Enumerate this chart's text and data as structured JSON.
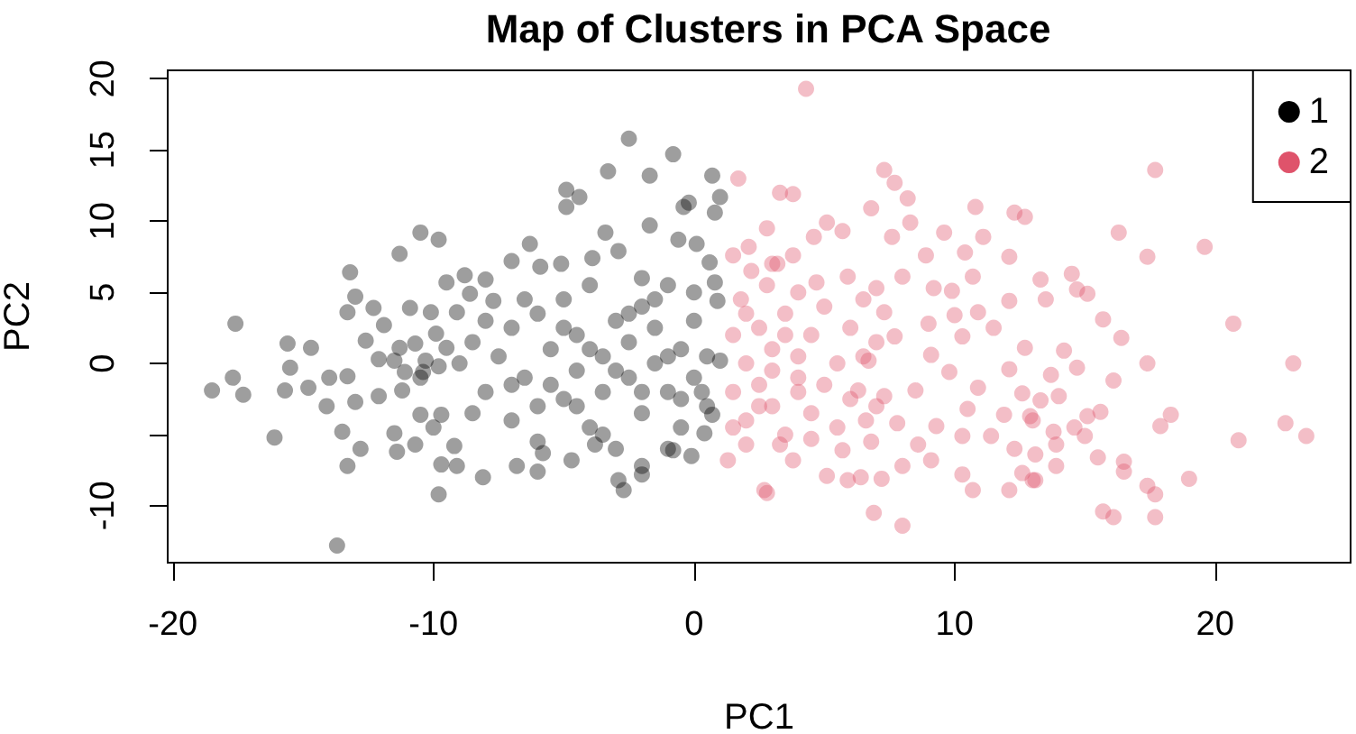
{
  "chart_data": {
    "type": "scatter",
    "title": "Map of Clusters in PCA Space",
    "xlabel": "PC1",
    "ylabel": "PC2",
    "xlim": [
      -20.2,
      25.2
    ],
    "ylim": [
      -14,
      20.6
    ],
    "xticks": [
      -20,
      -10,
      0,
      10,
      20
    ],
    "yticks": [
      -10,
      {
        "value": -5,
        "label": null
      },
      0,
      5,
      10,
      15,
      20
    ],
    "grid": false,
    "legend": "top right",
    "marker": "circle",
    "series": [
      {
        "name": "1",
        "color": "#000000",
        "x": [
          -17.6,
          -18.5,
          -17.7,
          -17.3,
          -16.1,
          -15.6,
          -15.5,
          -15.7,
          -14.7,
          -14.8,
          -14.1,
          -14.0,
          -13.7,
          -13.2,
          -13.3,
          -13.0,
          -12.6,
          -13.3,
          -13.0,
          -13.5,
          -13.3,
          -12.8,
          -12.3,
          -11.9,
          -12.1,
          -12.1,
          -11.5,
          -11.2,
          -11.3,
          -11.3,
          -10.9,
          -11.5,
          -11.4,
          -10.7,
          -10.5,
          -9.8,
          -10.7,
          -10.5,
          -10.1,
          -9.8,
          -9.7,
          -9.5,
          -9.5,
          -9.2,
          -9.1,
          -10.3,
          -10.4,
          -11.1,
          -8.8,
          -8.6,
          -2.5,
          -0.8,
          -3.3,
          -1.7,
          -4.9,
          -4.4,
          -4.9,
          0.7,
          -0.4,
          -0.2,
          1.0,
          0.8,
          -1.7,
          -3.4,
          -6.3,
          -7.0,
          -5.9,
          -5.1,
          -3.9,
          -2.9,
          -0.6,
          0.1,
          0.6,
          -8.0,
          -9.1,
          -7.7,
          -9.9,
          -9.8,
          -9.7,
          -8.1,
          -6.8,
          -6.0,
          -5.8,
          -4.7,
          -3.8,
          -2.9,
          -2.7,
          -2.0,
          -2.0,
          -0.8,
          -0.1,
          0.4,
          0.7,
          1.0,
          0.9,
          0.8,
          -8,
          -7.5,
          -7,
          -7,
          -6.5,
          -6,
          -6,
          -5.5,
          -5,
          -5,
          -4.5,
          -4.5,
          -4,
          -4,
          -3.5,
          -3.5,
          -3,
          -3,
          -2.5,
          -2.5,
          -2,
          -2,
          -1.5,
          -1.5,
          -1,
          -1,
          -0.5,
          -0.5,
          0,
          0,
          0.5,
          0.5,
          -8.5,
          -8,
          -6,
          -2,
          -1,
          -10.5,
          -9,
          -8.5,
          -10,
          -7,
          -6.5,
          -5.5,
          -5,
          -4.5,
          -4,
          -3.5,
          -3,
          -2.5,
          -2,
          -1.5,
          -1,
          -0.5,
          0,
          0.3
        ],
        "values": [
          2.8,
          -1.9,
          -1.0,
          -2.2,
          -5.2,
          1.4,
          -0.3,
          -1.9,
          1.1,
          -1.7,
          -3.0,
          -1.0,
          -12.8,
          6.4,
          3.6,
          4.7,
          1.6,
          -0.9,
          -2.7,
          -4.8,
          -7.2,
          -6.0,
          3.9,
          2.7,
          -2.3,
          0.3,
          0.2,
          -1.9,
          1.1,
          7.7,
          3.9,
          -4.9,
          -6.2,
          -5.7,
          9.2,
          8.7,
          1.4,
          -3.6,
          3.6,
          -9.2,
          -7.1,
          5.7,
          1.1,
          -5.8,
          -7.2,
          0.2,
          -0.6,
          -0.6,
          6.2,
          4.9,
          15.8,
          14.7,
          13.5,
          13.2,
          12.2,
          11.7,
          11.0,
          13.2,
          11.0,
          11.3,
          11.7,
          10.6,
          9.7,
          9.2,
          8.4,
          7.2,
          6.8,
          7.0,
          7.4,
          7.9,
          8.7,
          8.4,
          7.1,
          5.9,
          3.6,
          4.4,
          2.1,
          -0.2,
          -3.6,
          -8.0,
          -7.2,
          -7.6,
          -6.3,
          -6.8,
          -5.7,
          -8.2,
          -8.9,
          -7.8,
          -7.2,
          -6.1,
          -6.5,
          -4.9,
          -3.6,
          0.2,
          4.4,
          5.7,
          -2,
          0.5,
          2.5,
          -4,
          -1,
          3.5,
          -5.5,
          1,
          -2.5,
          4.5,
          -0.5,
          2,
          -4.5,
          5.5,
          0.5,
          -2,
          3,
          -6,
          -1,
          1.5,
          4,
          -3.5,
          0,
          2.5,
          -2,
          5.5,
          -4.5,
          1,
          3,
          -1,
          -3,
          0.5,
          -3.5,
          3,
          -3,
          6,
          -6,
          -1,
          0,
          1.5,
          -4.5,
          -1.5,
          4.5,
          -1.5,
          2.5,
          -3,
          1,
          -5,
          -0.5,
          3.5,
          -2,
          4.5,
          0.5,
          -2.5,
          5,
          -2
        ]
      },
      {
        "name": "2",
        "color": "#df536b",
        "x": [
          4.3,
          1.7,
          3.3,
          3.8,
          7.3,
          7.7,
          8.2,
          6.8,
          10.8,
          12.3,
          12.7,
          11.1,
          13.3,
          2.8,
          5.1,
          4.6,
          5.7,
          8.3,
          9.6,
          7.6,
          8.9,
          10.4,
          12.1,
          1.5,
          2.1,
          3.2,
          3.8,
          5.9,
          8.0,
          10.7,
          12.1,
          10.0,
          10.9,
          11.5,
          12.7,
          12.1,
          10.9,
          12.6,
          10.5,
          11.9,
          13.0,
          10.3,
          11.4,
          12.3,
          12.6,
          13.0,
          12.1,
          10.7,
          10.3,
          9.1,
          8.0,
          7.2,
          6.4,
          5.9,
          5.1,
          6.9,
          8.0,
          2.7,
          2.8,
          3.8,
          2.0,
          1.3,
          3.3,
          4.5,
          5.7,
          6.8,
          8.6,
          9.3,
          7.8,
          6.6,
          8.5,
          9.8,
          9.1,
          10.3,
          9.0,
          7.3,
          7.7,
          6.7,
          6.3,
          7.3,
          9.2,
          9.9,
          7.0,
          4.7,
          17.7,
          16.3,
          17.4,
          19.6,
          13.5,
          14.5,
          14.7,
          15.1,
          15.7,
          16.4,
          20.7,
          14.2,
          14.7,
          13.7,
          17.4,
          16.1,
          23.0,
          14.0,
          13.3,
          12.9,
          15.6,
          15.1,
          18.3,
          17.9,
          14.6,
          15.0,
          13.8,
          13.9,
          13.1,
          20.9,
          22.7,
          23.5,
          15.5,
          16.5,
          16.5,
          17.4,
          17.7,
          19.0,
          13.9,
          13.1,
          15.7,
          16.1,
          17.7,
          1.5,
          1.5,
          1.8,
          2,
          2,
          2.5,
          2.5,
          2.8,
          3,
          3,
          3.5,
          3.5,
          4,
          4,
          4,
          4.5,
          4.5,
          5,
          5,
          5.5,
          5.5,
          6,
          6,
          6.5,
          6.5,
          7,
          7,
          3,
          1.5,
          2.2,
          2,
          2.5,
          3,
          3.5,
          4
        ],
        "values": [
          19.3,
          13.0,
          12.0,
          11.9,
          13.6,
          12.7,
          11.6,
          10.9,
          11.0,
          10.6,
          10.3,
          8.9,
          5.9,
          9.5,
          9.9,
          8.9,
          9.3,
          9.9,
          9.2,
          8.9,
          7.6,
          7.8,
          7.5,
          7.6,
          8.2,
          7.0,
          7.6,
          6.1,
          6.1,
          6.1,
          4.4,
          3.4,
          3.6,
          2.5,
          1.1,
          -0.4,
          -1.7,
          -2.1,
          -3.2,
          -3.6,
          -4.0,
          -5.1,
          -5.1,
          -6.0,
          -7.7,
          -8.2,
          -8.9,
          -8.9,
          -7.8,
          -6.8,
          -7.2,
          -8.1,
          -8.0,
          -8.2,
          -7.9,
          -10.5,
          -11.4,
          -8.9,
          -9.1,
          -6.8,
          -5.7,
          -6.8,
          -5.7,
          -5.3,
          -6.1,
          -5.5,
          -5.7,
          -4.4,
          -4.2,
          -4.0,
          -1.9,
          -0.6,
          0.6,
          1.9,
          2.8,
          3.6,
          1.9,
          0.2,
          -1.9,
          -2.3,
          5.3,
          5.1,
          5.3,
          5.7,
          13.6,
          9.2,
          7.5,
          8.2,
          4.5,
          6.3,
          5.2,
          4.9,
          3.1,
          1.8,
          2.8,
          0.9,
          -0.3,
          -0.8,
          0.0,
          -1.2,
          0.0,
          -2.3,
          -2.6,
          -3.7,
          -3.4,
          -3.7,
          -3.6,
          -4.4,
          -4.5,
          -5.1,
          -4.8,
          -5.7,
          -6.4,
          -5.4,
          -4.2,
          -5.1,
          -6.6,
          -6.9,
          -7.6,
          -8.6,
          -9.2,
          -8.1,
          -7.2,
          -8.2,
          -10.4,
          -10.8,
          -10.8,
          -2,
          2,
          4.5,
          -4,
          0,
          2.5,
          -1.5,
          5.5,
          -3,
          1,
          -5,
          3.5,
          -1,
          0.5,
          5,
          -3.5,
          2,
          -1.5,
          4,
          0,
          -4.5,
          2.5,
          -2.5,
          0.5,
          4.5,
          -3,
          1.5,
          7,
          -4.5,
          6.5,
          3.5,
          -3,
          -0.5,
          2,
          -2
        ]
      }
    ]
  }
}
